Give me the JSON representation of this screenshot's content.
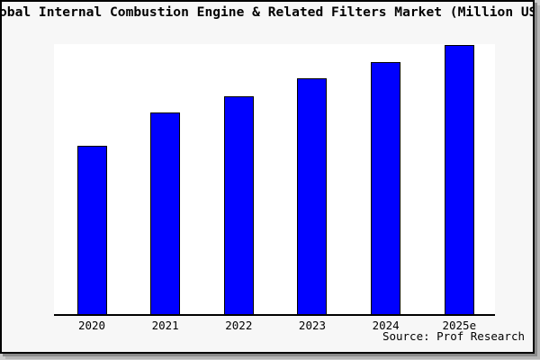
{
  "frame": {
    "margin_bg": "#f7f7f7",
    "plot_bg": "#ffffff",
    "border_color": "#000000",
    "shadow_dark": "#8a8a8a",
    "shadow_light": "#b5b5b5"
  },
  "title": {
    "text": "obal Internal Combustion Engine & Related Filters Market (Million US",
    "note": "title is cropped at both left and right image edges"
  },
  "source": {
    "text": "Source: Prof Research"
  },
  "chart_data": {
    "type": "bar",
    "title": "obal Internal Combustion Engine & Related Filters Market (Million US",
    "categories": [
      "2020",
      "2021",
      "2022",
      "2023",
      "2024",
      "2025e"
    ],
    "values": [
      62.5,
      75,
      81,
      87.5,
      93.5,
      100
    ],
    "value_note": "y-axis has no tick labels; values are relative bar heights indexed to 2025e = 100",
    "xlabel": "",
    "ylabel": "",
    "ylim": [
      0,
      100.5
    ],
    "grid": false,
    "legend": false,
    "y_ticks": "none",
    "bar_color": "#0000ff",
    "bar_border_color": "#000000",
    "axis_color": "#000000",
    "source": "Source: Prof Research"
  }
}
